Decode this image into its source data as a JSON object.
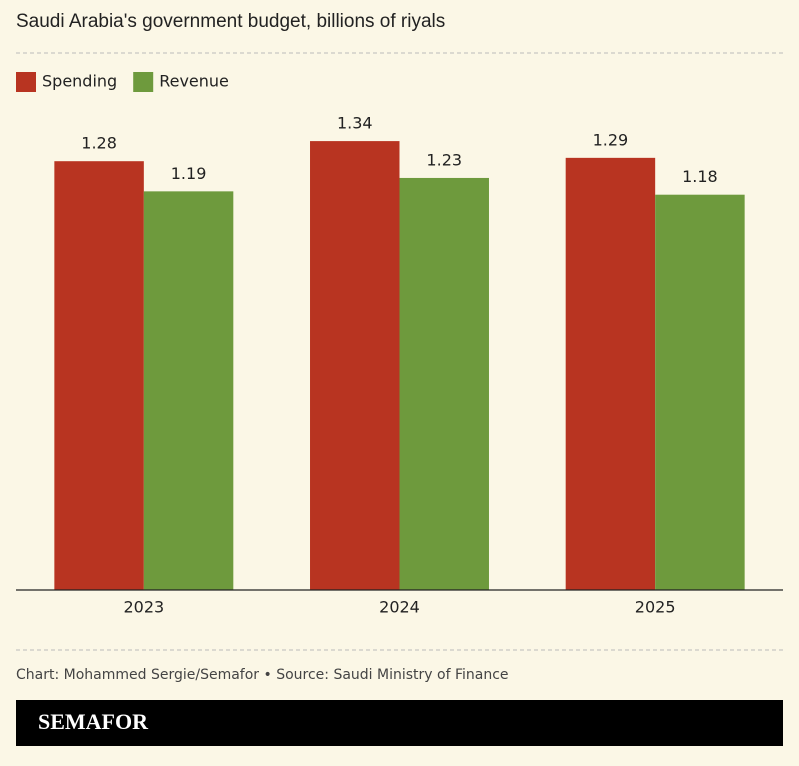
{
  "chart_data": {
    "type": "bar",
    "title": "Saudi Arabia's government budget, billions of riyals",
    "categories": [
      "2023",
      "2024",
      "2025"
    ],
    "series": [
      {
        "name": "Spending",
        "color": "#b83421",
        "values": [
          1.28,
          1.34,
          1.29
        ]
      },
      {
        "name": "Revenue",
        "color": "#6e9a3d",
        "values": [
          1.19,
          1.23,
          1.18
        ]
      }
    ],
    "ylim": [
      0,
      1.4
    ],
    "legend": "top-left",
    "source": "Chart: Mohammed Sergie/Semafor • Source: Saudi Ministry of Finance",
    "brand": "SEMAFOR"
  }
}
